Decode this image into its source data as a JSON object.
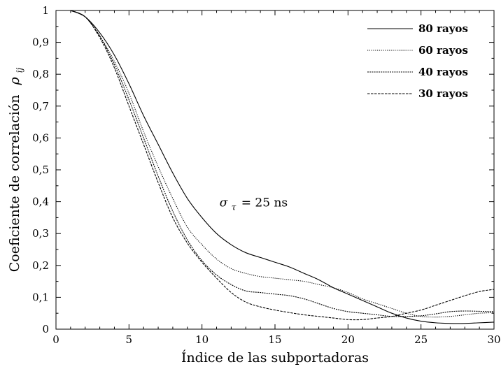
{
  "chart_data": {
    "type": "line",
    "title": "",
    "xlabel": "Índice de las subportadoras",
    "ylabel": "Coeficiente de correlación",
    "ylabel_symbol": "ρ",
    "ylabel_symbol_subscript": "ij",
    "xlim": [
      0,
      30
    ],
    "ylim": [
      0,
      1
    ],
    "x_ticks": [
      "0",
      "5",
      "10",
      "15",
      "20",
      "25",
      "30"
    ],
    "y_ticks": [
      "0",
      "0,1",
      "0,2",
      "0,3",
      "0,4",
      "0,5",
      "0,6",
      "0,7",
      "0,8",
      "0,9",
      "1"
    ],
    "grid": false,
    "legend_position": "top-right",
    "annotation": {
      "symbol": "σ",
      "subscript": "τ",
      "text": "=  25 ns",
      "x": 11.2,
      "y": 0.385
    },
    "x": [
      1,
      2,
      3,
      4,
      5,
      6,
      7,
      8,
      9,
      10,
      11,
      12,
      13,
      14,
      15,
      16,
      17,
      18,
      19,
      20,
      21,
      22,
      23,
      24,
      25,
      26,
      27,
      28,
      29,
      30
    ],
    "series": [
      {
        "name": "80 rayos",
        "dash": "none",
        "values": [
          1.0,
          0.98,
          0.93,
          0.86,
          0.77,
          0.67,
          0.58,
          0.49,
          0.41,
          0.35,
          0.3,
          0.265,
          0.24,
          0.225,
          0.21,
          0.195,
          0.175,
          0.155,
          0.13,
          0.11,
          0.09,
          0.07,
          0.05,
          0.035,
          0.025,
          0.02,
          0.018,
          0.018,
          0.02,
          0.022
        ]
      },
      {
        "name": "60 rayos",
        "dash": "1.2 1.6",
        "values": [
          1.0,
          0.98,
          0.92,
          0.84,
          0.74,
          0.62,
          0.51,
          0.41,
          0.32,
          0.265,
          0.22,
          0.19,
          0.175,
          0.165,
          0.16,
          0.155,
          0.15,
          0.14,
          0.13,
          0.115,
          0.095,
          0.08,
          0.065,
          0.05,
          0.04,
          0.038,
          0.04,
          0.045,
          0.05,
          0.052
        ]
      },
      {
        "name": "40 rayos",
        "dash": "2 1.2",
        "values": [
          1.0,
          0.98,
          0.92,
          0.83,
          0.72,
          0.6,
          0.48,
          0.37,
          0.28,
          0.215,
          0.17,
          0.14,
          0.12,
          0.115,
          0.11,
          0.105,
          0.095,
          0.08,
          0.065,
          0.055,
          0.05,
          0.045,
          0.04,
          0.04,
          0.042,
          0.048,
          0.055,
          0.057,
          0.056,
          0.055
        ]
      },
      {
        "name": "30 rayos",
        "dash": "3.5 1.5",
        "values": [
          1.0,
          0.98,
          0.915,
          0.82,
          0.7,
          0.58,
          0.46,
          0.35,
          0.27,
          0.21,
          0.16,
          0.115,
          0.085,
          0.07,
          0.06,
          0.052,
          0.045,
          0.04,
          0.035,
          0.03,
          0.03,
          0.035,
          0.04,
          0.05,
          0.06,
          0.075,
          0.09,
          0.105,
          0.118,
          0.125
        ]
      }
    ]
  }
}
